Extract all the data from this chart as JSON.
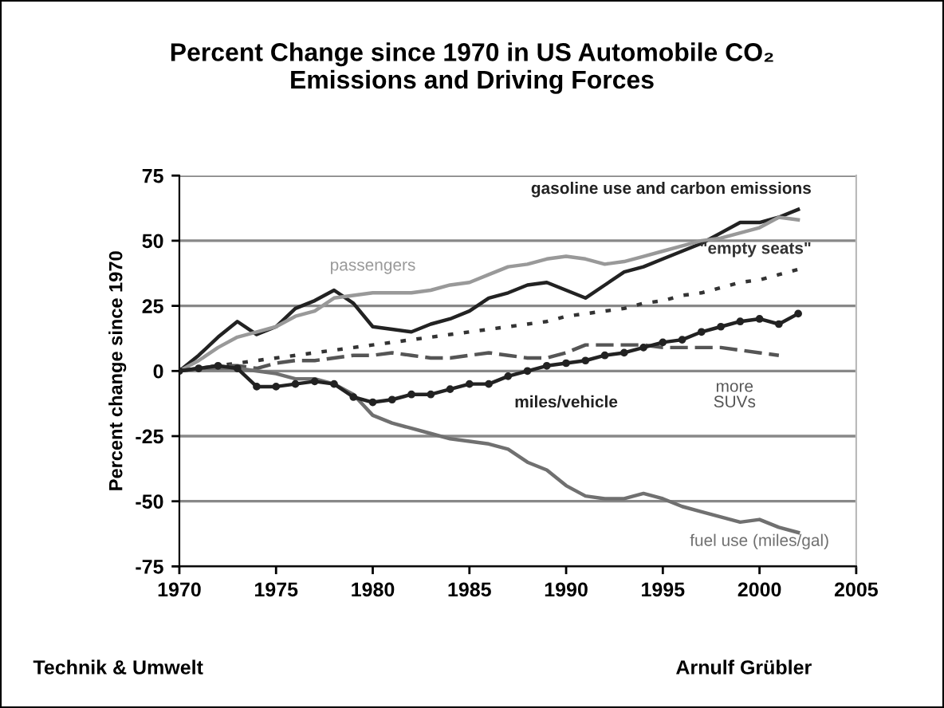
{
  "chart_data": {
    "type": "line",
    "title": "Percent Change since 1970 in US Automobile CO₂\nEmissions and Driving Forces",
    "ylabel": "Percent change since 1970",
    "x": [
      1970,
      1971,
      1972,
      1973,
      1974,
      1975,
      1976,
      1977,
      1978,
      1979,
      1980,
      1981,
      1982,
      1983,
      1984,
      1985,
      1986,
      1987,
      1988,
      1989,
      1990,
      1991,
      1992,
      1993,
      1994,
      1995,
      1996,
      1997,
      1998,
      1999,
      2000,
      2001,
      2002
    ],
    "series": [
      {
        "name": "gasoline use and carbon emissions",
        "color": "#222222",
        "line_style": "solid",
        "values": [
          0,
          6,
          13,
          19,
          14,
          17,
          24,
          27,
          31,
          26,
          17,
          16,
          15,
          18,
          20,
          23,
          28,
          30,
          33,
          34,
          31,
          28,
          33,
          38,
          40,
          43,
          46,
          49,
          53,
          57,
          57,
          59,
          62
        ]
      },
      {
        "name": "passengers",
        "color": "#999999",
        "line_style": "solid",
        "values": [
          0,
          4,
          9,
          13,
          15,
          17,
          21,
          23,
          28,
          29,
          30,
          30,
          30,
          31,
          33,
          34,
          37,
          40,
          41,
          43,
          44,
          43,
          41,
          42,
          44,
          46,
          48,
          50,
          51,
          53,
          55,
          59,
          58
        ]
      },
      {
        "name": "\"empty seats\"",
        "color": "#333333",
        "line_style": "dotted",
        "values": [
          0,
          1,
          2,
          3,
          4,
          5,
          6,
          7,
          8,
          9,
          10,
          11,
          12,
          13,
          14,
          15,
          16,
          17,
          18,
          19,
          21,
          22,
          23,
          24,
          26,
          27,
          29,
          30,
          32,
          34,
          35,
          37,
          39
        ]
      },
      {
        "name": "more\nSUVs",
        "color": "#555555",
        "line_style": "dashed",
        "values": [
          0,
          1,
          2,
          2,
          1,
          3,
          4,
          4,
          5,
          6,
          6,
          7,
          6,
          5,
          5,
          6,
          7,
          6,
          5,
          5,
          7,
          10,
          10,
          10,
          10,
          9,
          9,
          9,
          9,
          8,
          7,
          6,
          null
        ]
      },
      {
        "name": "miles/vehicle",
        "color": "#222222",
        "line_style": "solid",
        "marker": "circle",
        "values": [
          0,
          1,
          2,
          1,
          -6,
          -6,
          -5,
          -4,
          -5,
          -10,
          -12,
          -11,
          -9,
          -9,
          -7,
          -5,
          -5,
          -2,
          0,
          2,
          3,
          4,
          6,
          7,
          9,
          11,
          12,
          15,
          17,
          19,
          20,
          18,
          22
        ]
      },
      {
        "name": "fuel use (miles/gal)",
        "color": "#707070",
        "line_style": "solid",
        "values": [
          0,
          1,
          1,
          1,
          0,
          -1,
          -3,
          -3,
          -5,
          -9,
          -17,
          -20,
          -22,
          -24,
          -26,
          -27,
          -28,
          -30,
          -35,
          -38,
          -44,
          -48,
          -49,
          -49,
          -47,
          -49,
          -52,
          -54,
          -56,
          -58,
          -57,
          -60,
          -62
        ]
      }
    ],
    "xlim": [
      1970,
      2005
    ],
    "xticks": [
      1970,
      1975,
      1980,
      1985,
      1990,
      1995,
      2000,
      2005
    ],
    "ylim": [
      -75,
      75
    ],
    "yticks": [
      -75,
      -50,
      -25,
      0,
      25,
      50,
      75
    ],
    "grid": "y",
    "legend": false,
    "annotations": [
      "Technik & Umwelt",
      "Arnulf Grübler"
    ]
  }
}
